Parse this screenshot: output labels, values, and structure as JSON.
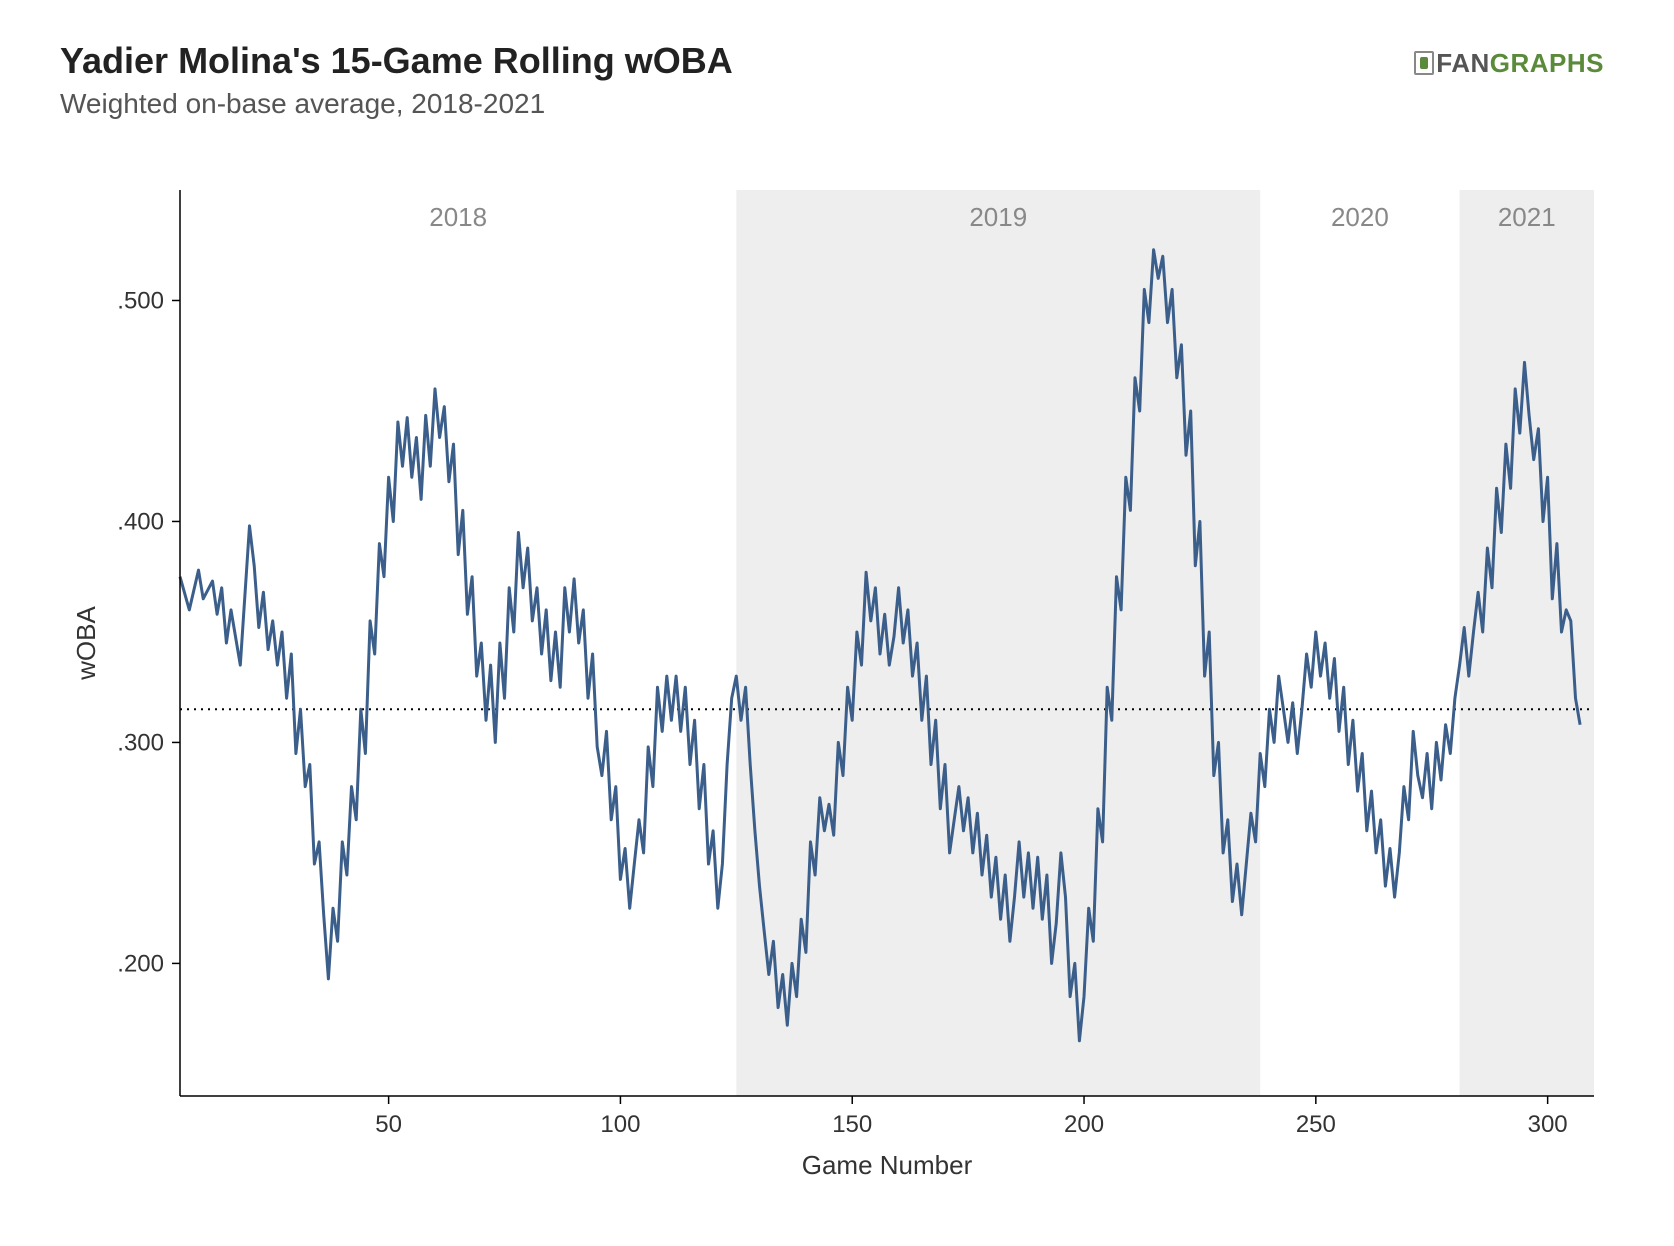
{
  "header": {
    "title": "Yadier Molina's 15-Game Rolling wOBA",
    "subtitle": "Weighted on-base average, 2018-2021"
  },
  "logo": {
    "text_left": "FAN",
    "text_right": "GRAPHS"
  },
  "chart": {
    "type": "line",
    "line_color": "#3b5f8a",
    "line_width": 3,
    "background_color": "#ffffff",
    "band_color": "#eeeeee",
    "reference_line": {
      "value": 0.315,
      "stroke": "#000000",
      "dash": "2 5"
    },
    "x": {
      "title": "Game Number",
      "lim": [
        5,
        310
      ],
      "ticks": [
        50,
        100,
        150,
        200,
        250,
        300
      ]
    },
    "y": {
      "title": "wOBA",
      "lim": [
        0.14,
        0.55
      ],
      "ticks": [
        0.2,
        0.3,
        0.4,
        0.5
      ],
      "tick_labels": [
        ".200",
        ".300",
        ".400",
        ".500"
      ]
    },
    "year_bands": [
      {
        "label": "2018",
        "start": 5,
        "end": 125,
        "shaded": false
      },
      {
        "label": "2019",
        "start": 125,
        "end": 238,
        "shaded": true
      },
      {
        "label": "2020",
        "start": 238,
        "end": 281,
        "shaded": false
      },
      {
        "label": "2021",
        "start": 281,
        "end": 310,
        "shaded": true
      }
    ],
    "year_label_fontsize": 26,
    "year_label_color": "#888888",
    "axis_label_fontsize": 24,
    "axis_title_fontsize": 26,
    "series": [
      [
        5,
        0.375
      ],
      [
        7,
        0.36
      ],
      [
        9,
        0.378
      ],
      [
        10,
        0.365
      ],
      [
        12,
        0.373
      ],
      [
        13,
        0.358
      ],
      [
        14,
        0.37
      ],
      [
        15,
        0.345
      ],
      [
        16,
        0.36
      ],
      [
        18,
        0.335
      ],
      [
        20,
        0.398
      ],
      [
        21,
        0.38
      ],
      [
        22,
        0.352
      ],
      [
        23,
        0.368
      ],
      [
        24,
        0.342
      ],
      [
        25,
        0.355
      ],
      [
        26,
        0.335
      ],
      [
        27,
        0.35
      ],
      [
        28,
        0.32
      ],
      [
        29,
        0.34
      ],
      [
        30,
        0.295
      ],
      [
        31,
        0.315
      ],
      [
        32,
        0.28
      ],
      [
        33,
        0.29
      ],
      [
        34,
        0.245
      ],
      [
        35,
        0.255
      ],
      [
        36,
        0.222
      ],
      [
        37,
        0.193
      ],
      [
        38,
        0.225
      ],
      [
        39,
        0.21
      ],
      [
        40,
        0.255
      ],
      [
        41,
        0.24
      ],
      [
        42,
        0.28
      ],
      [
        43,
        0.265
      ],
      [
        44,
        0.315
      ],
      [
        45,
        0.295
      ],
      [
        46,
        0.355
      ],
      [
        47,
        0.34
      ],
      [
        48,
        0.39
      ],
      [
        49,
        0.375
      ],
      [
        50,
        0.42
      ],
      [
        51,
        0.4
      ],
      [
        52,
        0.445
      ],
      [
        53,
        0.425
      ],
      [
        54,
        0.447
      ],
      [
        55,
        0.42
      ],
      [
        56,
        0.438
      ],
      [
        57,
        0.41
      ],
      [
        58,
        0.448
      ],
      [
        59,
        0.425
      ],
      [
        60,
        0.46
      ],
      [
        61,
        0.438
      ],
      [
        62,
        0.452
      ],
      [
        63,
        0.418
      ],
      [
        64,
        0.435
      ],
      [
        65,
        0.385
      ],
      [
        66,
        0.405
      ],
      [
        67,
        0.358
      ],
      [
        68,
        0.375
      ],
      [
        69,
        0.33
      ],
      [
        70,
        0.345
      ],
      [
        71,
        0.31
      ],
      [
        72,
        0.335
      ],
      [
        73,
        0.3
      ],
      [
        74,
        0.345
      ],
      [
        75,
        0.32
      ],
      [
        76,
        0.37
      ],
      [
        77,
        0.35
      ],
      [
        78,
        0.395
      ],
      [
        79,
        0.37
      ],
      [
        80,
        0.388
      ],
      [
        81,
        0.355
      ],
      [
        82,
        0.37
      ],
      [
        83,
        0.34
      ],
      [
        84,
        0.36
      ],
      [
        85,
        0.328
      ],
      [
        86,
        0.35
      ],
      [
        87,
        0.325
      ],
      [
        88,
        0.37
      ],
      [
        89,
        0.35
      ],
      [
        90,
        0.374
      ],
      [
        91,
        0.345
      ],
      [
        92,
        0.36
      ],
      [
        93,
        0.32
      ],
      [
        94,
        0.34
      ],
      [
        95,
        0.298
      ],
      [
        96,
        0.285
      ],
      [
        97,
        0.305
      ],
      [
        98,
        0.265
      ],
      [
        99,
        0.28
      ],
      [
        100,
        0.238
      ],
      [
        101,
        0.252
      ],
      [
        102,
        0.225
      ],
      [
        103,
        0.245
      ],
      [
        104,
        0.265
      ],
      [
        105,
        0.25
      ],
      [
        106,
        0.298
      ],
      [
        107,
        0.28
      ],
      [
        108,
        0.325
      ],
      [
        109,
        0.305
      ],
      [
        110,
        0.33
      ],
      [
        111,
        0.31
      ],
      [
        112,
        0.33
      ],
      [
        113,
        0.305
      ],
      [
        114,
        0.325
      ],
      [
        115,
        0.29
      ],
      [
        116,
        0.31
      ],
      [
        117,
        0.27
      ],
      [
        118,
        0.29
      ],
      [
        119,
        0.245
      ],
      [
        120,
        0.26
      ],
      [
        121,
        0.225
      ],
      [
        122,
        0.245
      ],
      [
        123,
        0.29
      ],
      [
        124,
        0.32
      ],
      [
        125,
        0.33
      ],
      [
        126,
        0.31
      ],
      [
        127,
        0.325
      ],
      [
        128,
        0.29
      ],
      [
        129,
        0.26
      ],
      [
        130,
        0.235
      ],
      [
        131,
        0.215
      ],
      [
        132,
        0.195
      ],
      [
        133,
        0.21
      ],
      [
        134,
        0.18
      ],
      [
        135,
        0.195
      ],
      [
        136,
        0.172
      ],
      [
        137,
        0.2
      ],
      [
        138,
        0.185
      ],
      [
        139,
        0.22
      ],
      [
        140,
        0.205
      ],
      [
        141,
        0.255
      ],
      [
        142,
        0.24
      ],
      [
        143,
        0.275
      ],
      [
        144,
        0.26
      ],
      [
        145,
        0.272
      ],
      [
        146,
        0.258
      ],
      [
        147,
        0.3
      ],
      [
        148,
        0.285
      ],
      [
        149,
        0.325
      ],
      [
        150,
        0.31
      ],
      [
        151,
        0.35
      ],
      [
        152,
        0.335
      ],
      [
        153,
        0.377
      ],
      [
        154,
        0.355
      ],
      [
        155,
        0.37
      ],
      [
        156,
        0.34
      ],
      [
        157,
        0.358
      ],
      [
        158,
        0.335
      ],
      [
        159,
        0.348
      ],
      [
        160,
        0.37
      ],
      [
        161,
        0.345
      ],
      [
        162,
        0.36
      ],
      [
        163,
        0.33
      ],
      [
        164,
        0.345
      ],
      [
        165,
        0.31
      ],
      [
        166,
        0.33
      ],
      [
        167,
        0.29
      ],
      [
        168,
        0.31
      ],
      [
        169,
        0.27
      ],
      [
        170,
        0.29
      ],
      [
        171,
        0.25
      ],
      [
        172,
        0.265
      ],
      [
        173,
        0.28
      ],
      [
        174,
        0.26
      ],
      [
        175,
        0.275
      ],
      [
        176,
        0.25
      ],
      [
        177,
        0.268
      ],
      [
        178,
        0.24
      ],
      [
        179,
        0.258
      ],
      [
        180,
        0.23
      ],
      [
        181,
        0.248
      ],
      [
        182,
        0.22
      ],
      [
        183,
        0.24
      ],
      [
        184,
        0.21
      ],
      [
        185,
        0.23
      ],
      [
        186,
        0.255
      ],
      [
        187,
        0.23
      ],
      [
        188,
        0.25
      ],
      [
        189,
        0.225
      ],
      [
        190,
        0.248
      ],
      [
        191,
        0.22
      ],
      [
        192,
        0.24
      ],
      [
        193,
        0.2
      ],
      [
        194,
        0.218
      ],
      [
        195,
        0.25
      ],
      [
        196,
        0.23
      ],
      [
        197,
        0.185
      ],
      [
        198,
        0.2
      ],
      [
        199,
        0.165
      ],
      [
        200,
        0.185
      ],
      [
        201,
        0.225
      ],
      [
        202,
        0.21
      ],
      [
        203,
        0.27
      ],
      [
        204,
        0.255
      ],
      [
        205,
        0.325
      ],
      [
        206,
        0.31
      ],
      [
        207,
        0.375
      ],
      [
        208,
        0.36
      ],
      [
        209,
        0.42
      ],
      [
        210,
        0.405
      ],
      [
        211,
        0.465
      ],
      [
        212,
        0.45
      ],
      [
        213,
        0.505
      ],
      [
        214,
        0.49
      ],
      [
        215,
        0.523
      ],
      [
        216,
        0.51
      ],
      [
        217,
        0.52
      ],
      [
        218,
        0.49
      ],
      [
        219,
        0.505
      ],
      [
        220,
        0.465
      ],
      [
        221,
        0.48
      ],
      [
        222,
        0.43
      ],
      [
        223,
        0.45
      ],
      [
        224,
        0.38
      ],
      [
        225,
        0.4
      ],
      [
        226,
        0.33
      ],
      [
        227,
        0.35
      ],
      [
        228,
        0.285
      ],
      [
        229,
        0.3
      ],
      [
        230,
        0.25
      ],
      [
        231,
        0.265
      ],
      [
        232,
        0.228
      ],
      [
        233,
        0.245
      ],
      [
        234,
        0.222
      ],
      [
        235,
        0.245
      ],
      [
        236,
        0.268
      ],
      [
        237,
        0.255
      ],
      [
        238,
        0.295
      ],
      [
        239,
        0.28
      ],
      [
        240,
        0.315
      ],
      [
        241,
        0.3
      ],
      [
        242,
        0.33
      ],
      [
        243,
        0.315
      ],
      [
        244,
        0.3
      ],
      [
        245,
        0.318
      ],
      [
        246,
        0.295
      ],
      [
        247,
        0.315
      ],
      [
        248,
        0.34
      ],
      [
        249,
        0.325
      ],
      [
        250,
        0.35
      ],
      [
        251,
        0.33
      ],
      [
        252,
        0.345
      ],
      [
        253,
        0.32
      ],
      [
        254,
        0.338
      ],
      [
        255,
        0.305
      ],
      [
        256,
        0.325
      ],
      [
        257,
        0.29
      ],
      [
        258,
        0.31
      ],
      [
        259,
        0.278
      ],
      [
        260,
        0.295
      ],
      [
        261,
        0.26
      ],
      [
        262,
        0.278
      ],
      [
        263,
        0.25
      ],
      [
        264,
        0.265
      ],
      [
        265,
        0.235
      ],
      [
        266,
        0.252
      ],
      [
        267,
        0.23
      ],
      [
        268,
        0.25
      ],
      [
        269,
        0.28
      ],
      [
        270,
        0.265
      ],
      [
        271,
        0.305
      ],
      [
        272,
        0.285
      ],
      [
        273,
        0.275
      ],
      [
        274,
        0.295
      ],
      [
        275,
        0.27
      ],
      [
        276,
        0.3
      ],
      [
        277,
        0.283
      ],
      [
        278,
        0.308
      ],
      [
        279,
        0.295
      ],
      [
        280,
        0.32
      ],
      [
        281,
        0.335
      ],
      [
        282,
        0.352
      ],
      [
        283,
        0.33
      ],
      [
        284,
        0.35
      ],
      [
        285,
        0.368
      ],
      [
        286,
        0.35
      ],
      [
        287,
        0.388
      ],
      [
        288,
        0.37
      ],
      [
        289,
        0.415
      ],
      [
        290,
        0.395
      ],
      [
        291,
        0.435
      ],
      [
        292,
        0.415
      ],
      [
        293,
        0.46
      ],
      [
        294,
        0.44
      ],
      [
        295,
        0.472
      ],
      [
        296,
        0.448
      ],
      [
        297,
        0.428
      ],
      [
        298,
        0.442
      ],
      [
        299,
        0.4
      ],
      [
        300,
        0.42
      ],
      [
        301,
        0.365
      ],
      [
        302,
        0.39
      ],
      [
        303,
        0.35
      ],
      [
        304,
        0.36
      ],
      [
        305,
        0.355
      ],
      [
        306,
        0.32
      ],
      [
        307,
        0.308
      ]
    ]
  }
}
